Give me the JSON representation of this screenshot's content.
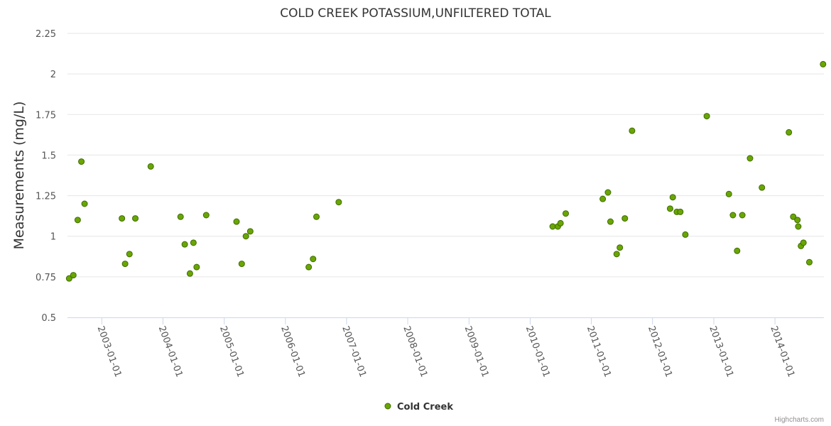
{
  "chart_data": {
    "type": "scatter",
    "title": "COLD CREEK POTASSIUM,UNFILTERED TOTAL",
    "xlabel": "",
    "ylabel": "Measurements (mg/L)",
    "ylim": [
      0.5,
      2.25
    ],
    "yticks": [
      "0.5",
      "0.75",
      "1",
      "1.25",
      "1.5",
      "1.75",
      "2",
      "2.25"
    ],
    "xlim": [
      "2002-06-10",
      "2014-10-20"
    ],
    "xticks": [
      "2003-01-01",
      "2004-01-01",
      "2005-01-01",
      "2006-01-01",
      "2007-01-01",
      "2008-01-01",
      "2009-01-01",
      "2010-01-01",
      "2011-01-01",
      "2012-01-01",
      "2013-01-01",
      "2014-01-01"
    ],
    "color": "#7cb342",
    "marker_color": "#6aa600",
    "marker_stroke": "#3d6b00",
    "legend": [
      "Cold Creek"
    ],
    "credits": "Highcharts.com",
    "series": [
      {
        "name": "Cold Creek",
        "points": [
          [
            "2002-06-20",
            0.74
          ],
          [
            "2002-07-15",
            0.76
          ],
          [
            "2002-08-10",
            1.1
          ],
          [
            "2002-09-01",
            1.46
          ],
          [
            "2002-09-20",
            1.2
          ],
          [
            "2003-05-01",
            1.11
          ],
          [
            "2003-05-20",
            0.83
          ],
          [
            "2003-06-15",
            0.89
          ],
          [
            "2003-07-20",
            1.11
          ],
          [
            "2003-10-20",
            1.43
          ],
          [
            "2004-04-15",
            1.12
          ],
          [
            "2004-05-10",
            0.95
          ],
          [
            "2004-06-10",
            0.77
          ],
          [
            "2004-07-01",
            0.96
          ],
          [
            "2004-07-20",
            0.81
          ],
          [
            "2004-09-15",
            1.13
          ],
          [
            "2005-03-15",
            1.09
          ],
          [
            "2005-04-15",
            0.83
          ],
          [
            "2005-05-10",
            1.0
          ],
          [
            "2005-06-05",
            1.03
          ],
          [
            "2006-05-20",
            0.81
          ],
          [
            "2006-06-15",
            0.86
          ],
          [
            "2006-07-05",
            1.12
          ],
          [
            "2006-11-15",
            1.21
          ],
          [
            "2010-05-15",
            1.06
          ],
          [
            "2010-06-15",
            1.06
          ],
          [
            "2010-07-01",
            1.08
          ],
          [
            "2010-08-01",
            1.14
          ],
          [
            "2011-03-10",
            1.23
          ],
          [
            "2011-04-10",
            1.27
          ],
          [
            "2011-04-25",
            1.09
          ],
          [
            "2011-06-01",
            0.89
          ],
          [
            "2011-06-20",
            0.93
          ],
          [
            "2011-07-20",
            1.11
          ],
          [
            "2011-09-01",
            1.65
          ],
          [
            "2012-04-15",
            1.17
          ],
          [
            "2012-05-01",
            1.24
          ],
          [
            "2012-05-25",
            1.15
          ],
          [
            "2012-06-15",
            1.15
          ],
          [
            "2012-07-15",
            1.01
          ],
          [
            "2012-11-20",
            1.74
          ],
          [
            "2013-04-01",
            1.26
          ],
          [
            "2013-04-25",
            1.13
          ],
          [
            "2013-05-20",
            0.91
          ],
          [
            "2013-06-20",
            1.13
          ],
          [
            "2013-08-05",
            1.48
          ],
          [
            "2013-10-15",
            1.3
          ],
          [
            "2014-03-25",
            1.64
          ],
          [
            "2014-04-20",
            1.12
          ],
          [
            "2014-05-15",
            1.1
          ],
          [
            "2014-05-20",
            1.06
          ],
          [
            "2014-06-05",
            0.94
          ],
          [
            "2014-06-20",
            0.96
          ],
          [
            "2014-07-25",
            0.84
          ],
          [
            "2014-10-15",
            2.06
          ]
        ]
      }
    ]
  }
}
